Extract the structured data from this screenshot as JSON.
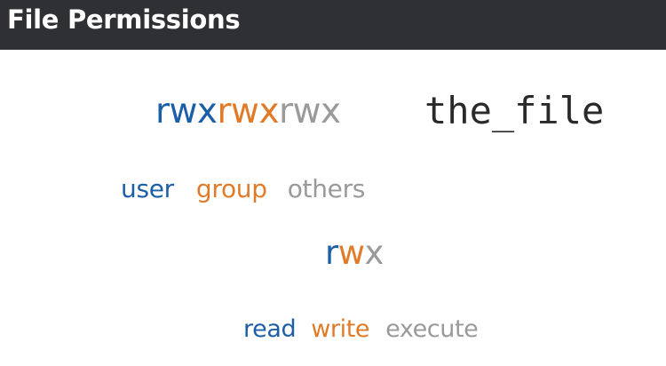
{
  "header": {
    "title": "File Permissions"
  },
  "permissions": {
    "user": "rwx",
    "group": "rwx",
    "others": "rwx",
    "file": "the_file"
  },
  "labels": {
    "user": "user",
    "group": "group",
    "others": "others"
  },
  "rwx": {
    "r": "r",
    "w": "w",
    "x": "x"
  },
  "actions": {
    "read": "read",
    "write": "write",
    "execute": "execute"
  },
  "colors": {
    "header_bg": "#2f3033",
    "blue": "#1d5fa6",
    "orange": "#e07b2a",
    "gray": "#9a9a9a",
    "file_text": "#2a2a2a"
  }
}
